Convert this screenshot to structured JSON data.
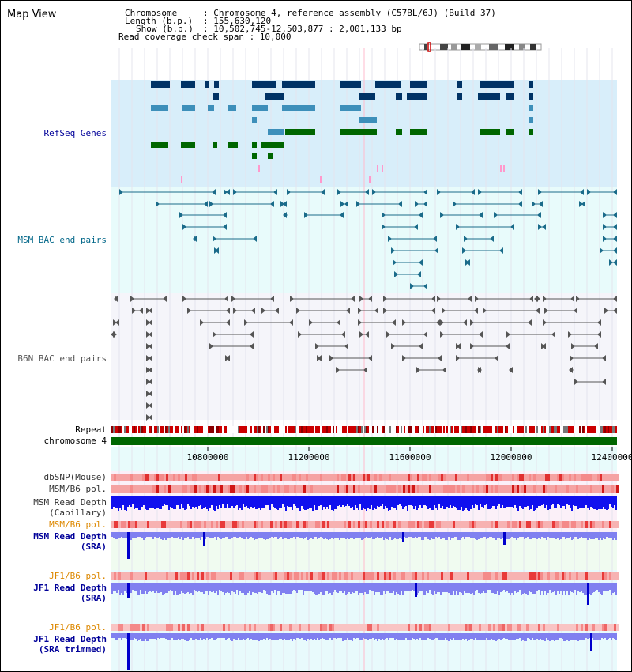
{
  "title": "Map View",
  "info": {
    "chromosome_key": "Chromosome",
    "chromosome_value": ": Chromosome 4, reference assembly (C57BL/6J) (Build 37)",
    "length_key": "Length (b.p.)",
    "length_value": ": 155,630,120",
    "show_key": "Show (b.p.)",
    "show_value": ": 10,502,745-12,503,877 : 2,001,133 bp",
    "coverage": "Read coverage check span : 10,000"
  },
  "tracks": {
    "refseq": "RefSeq Genes",
    "msm_bac": "MSM BAC end pairs",
    "b6n_bac": "B6N BAC end pairs",
    "repeat": "Repeat",
    "chromosome": "chromosome 4",
    "dbsnp": "dbSNP(Mouse)",
    "msm_pol_1": "MSM/B6 pol.",
    "msm_depth_cap_1": "MSM Read Depth",
    "msm_depth_cap_2": "(Capillary)",
    "msm_pol_2": "MSM/B6 pol.",
    "msm_depth_sra_1": "MSM Read Depth",
    "msm_depth_sra_2": "(SRA)",
    "jf1_pol_1": "JF1/B6 pol.",
    "jf1_depth_sra_1": "JF1 Read Depth",
    "jf1_depth_sra_2": "(SRA)",
    "jf1_pol_2": "JF1/B6 pol.",
    "jf1_depth_trim_1": "JF1 Read Depth",
    "jf1_depth_trim_2": "(SRA trimmed)"
  },
  "axis": {
    "ticks": [
      "10800000",
      "11200000",
      "11600000",
      "12000000",
      "12400000"
    ]
  },
  "colors": {
    "refseq_dark": "#003366",
    "refseq_mid": "#3d8fba",
    "refseq_green": "#006600",
    "msm_pair": "#1a6b8a",
    "b6n_pair": "#555555",
    "repeat_red": "#cc0000",
    "chromosome_green": "#006600",
    "depth_capillary": "#1010ee",
    "depth_sra": "#8080f0",
    "label_blue": "#000099",
    "label_teal": "#006688",
    "label_orange": "#dd8800"
  }
}
